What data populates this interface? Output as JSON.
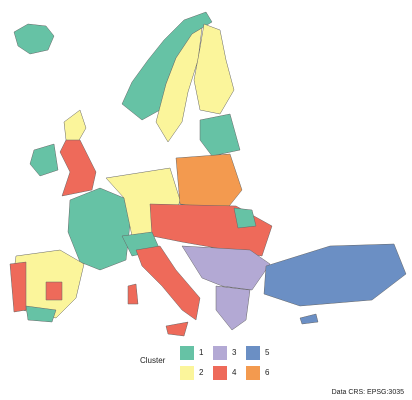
{
  "legend": {
    "title": "Cluster",
    "items": [
      {
        "label": "1",
        "color": "#66c2a5"
      },
      {
        "label": "2",
        "color": "#fbf59b"
      },
      {
        "label": "3",
        "color": "#b3a9d4"
      },
      {
        "label": "4",
        "color": "#ee6a5a"
      },
      {
        "label": "5",
        "color": "#6b8fc4"
      },
      {
        "label": "6",
        "color": "#f39a4f"
      }
    ]
  },
  "caption": "Data CRS: EPSG:3035"
}
